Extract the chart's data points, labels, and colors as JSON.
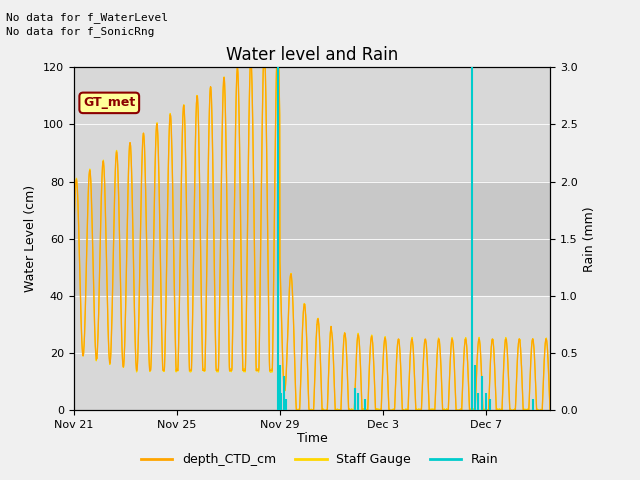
{
  "title": "Water level and Rain",
  "xlabel": "Time",
  "ylabel_left": "Water Level (cm)",
  "ylabel_right": "Rain (mm)",
  "top_text": [
    "No data for f_WaterLevel",
    "No data for f_SonicRng"
  ],
  "box_label": "GT_met",
  "ylim_left": [
    0,
    120
  ],
  "ylim_right": [
    0,
    3.0
  ],
  "yticks_left": [
    0,
    20,
    40,
    60,
    80,
    100,
    120
  ],
  "yticks_right": [
    0.0,
    0.5,
    1.0,
    1.5,
    2.0,
    2.5,
    3.0
  ],
  "xtick_labels": [
    "Nov 21",
    "Nov 25",
    "Nov 29",
    "Dec 3",
    "Dec 7"
  ],
  "xtick_days": [
    0,
    4,
    8,
    12,
    16
  ],
  "total_days": 18.5,
  "background_color": "#f0f0f0",
  "plot_bg_color": "#e8e8e8",
  "band_light_color": "#dcdcdc",
  "band_mid_color": "#c8c8c8",
  "legend_entries": [
    "depth_CTD_cm",
    "Staff Gauge",
    "Rain"
  ],
  "legend_colors": [
    "#FFA500",
    "#FFD700",
    "#00CCCC"
  ],
  "ctd_color": "#FFA500",
  "staff_color": "#FFD700",
  "rain_color": "#00CCCC",
  "note_fontsize": 8,
  "title_fontsize": 12,
  "axis_fontsize": 9,
  "tick_fontsize": 8,
  "box_facecolor": "#FFFF99",
  "box_edgecolor": "#8B0000",
  "box_textcolor": "#8B0000"
}
